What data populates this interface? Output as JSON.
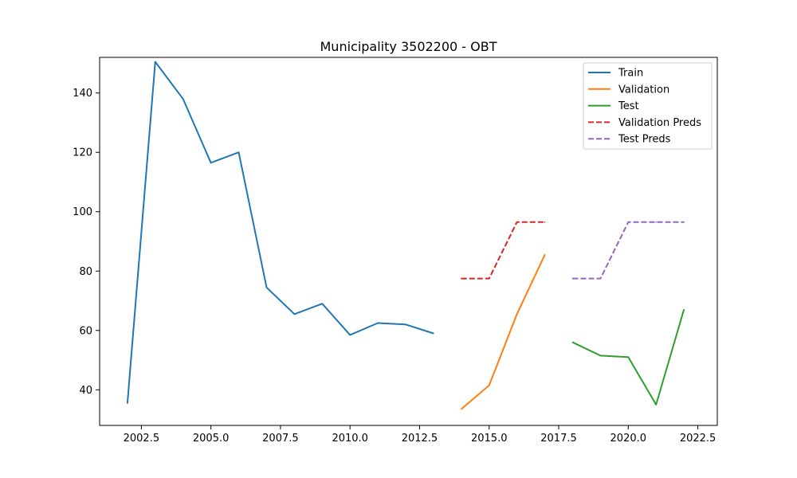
{
  "chart_data": {
    "type": "line",
    "title": "Municipality 3502200 - OBT",
    "xlabel": "",
    "ylabel": "",
    "xlim": [
      2001,
      2023.2
    ],
    "ylim": [
      28,
      152
    ],
    "x_ticks": [
      2002.5,
      2005.0,
      2007.5,
      2010.0,
      2012.5,
      2015.0,
      2017.5,
      2020.0,
      2022.5
    ],
    "x_tick_labels": [
      "2002.5",
      "2005.0",
      "2007.5",
      "2010.0",
      "2012.5",
      "2015.0",
      "2017.5",
      "2020.0",
      "2022.5"
    ],
    "y_ticks": [
      40,
      60,
      80,
      100,
      120,
      140
    ],
    "y_tick_labels": [
      "40",
      "60",
      "80",
      "100",
      "120",
      "140"
    ],
    "grid": false,
    "legend_position": "top-right",
    "series": [
      {
        "name": "Train",
        "color": "#1f77b4",
        "dashed": false,
        "x": [
          2002,
          2003,
          2004,
          2005,
          2006,
          2007,
          2008,
          2009,
          2010,
          2011,
          2012,
          2013
        ],
        "y": [
          35.5,
          150.5,
          138,
          116.5,
          120,
          74.5,
          65.5,
          69,
          58.5,
          62.5,
          62,
          59
        ]
      },
      {
        "name": "Validation",
        "color": "#ff7f0e",
        "dashed": false,
        "x": [
          2014,
          2015,
          2016,
          2017
        ],
        "y": [
          33.5,
          41.5,
          65.5,
          85.5
        ]
      },
      {
        "name": "Test",
        "color": "#2ca02c",
        "dashed": false,
        "x": [
          2018,
          2019,
          2020,
          2021,
          2022
        ],
        "y": [
          56,
          51.5,
          51,
          35,
          67
        ]
      },
      {
        "name": "Validation Preds",
        "color": "#d62728",
        "dashed": true,
        "x": [
          2014,
          2015,
          2016,
          2017
        ],
        "y": [
          77.5,
          77.5,
          96.5,
          96.5
        ]
      },
      {
        "name": "Test Preds",
        "color": "#9467bd",
        "dashed": true,
        "x": [
          2018,
          2019,
          2020,
          2021,
          2022
        ],
        "y": [
          77.5,
          77.5,
          96.5,
          96.5,
          96.5
        ]
      }
    ]
  }
}
